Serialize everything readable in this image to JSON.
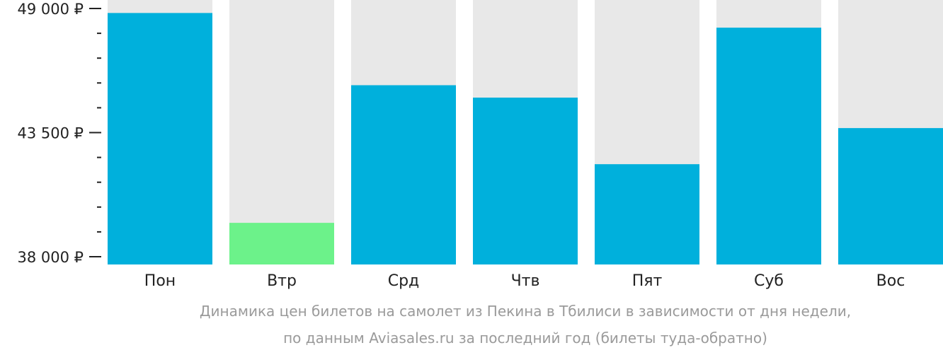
{
  "chart_data": {
    "type": "bar",
    "categories": [
      "Пон",
      "Втр",
      "Срд",
      "Чтв",
      "Пят",
      "Суб",
      "Вос"
    ],
    "values": [
      48800,
      39500,
      45600,
      45050,
      42100,
      48150,
      43700
    ],
    "ylim": [
      38000,
      49000
    ],
    "yticks": [
      {
        "value": 49000,
        "label": "49 000 ₽"
      },
      {
        "value": 43500,
        "label": "43 500 ₽"
      },
      {
        "value": 38000,
        "label": "38 000 ₽"
      }
    ],
    "minor_tick_step": 1100,
    "highlight_index": 1,
    "grid": false,
    "legend": "none",
    "colors": {
      "bar": "#00b0dc",
      "highlight": "#6cf28a",
      "track": "#e8e8e8",
      "axis": "#222222"
    }
  },
  "caption": {
    "line1": "Динамика цен билетов на самолет из Пекина в Тбилиси в зависимости от дня недели,",
    "line2": "по данным Aviasales.ru за последний год (билеты туда-обратно)"
  }
}
